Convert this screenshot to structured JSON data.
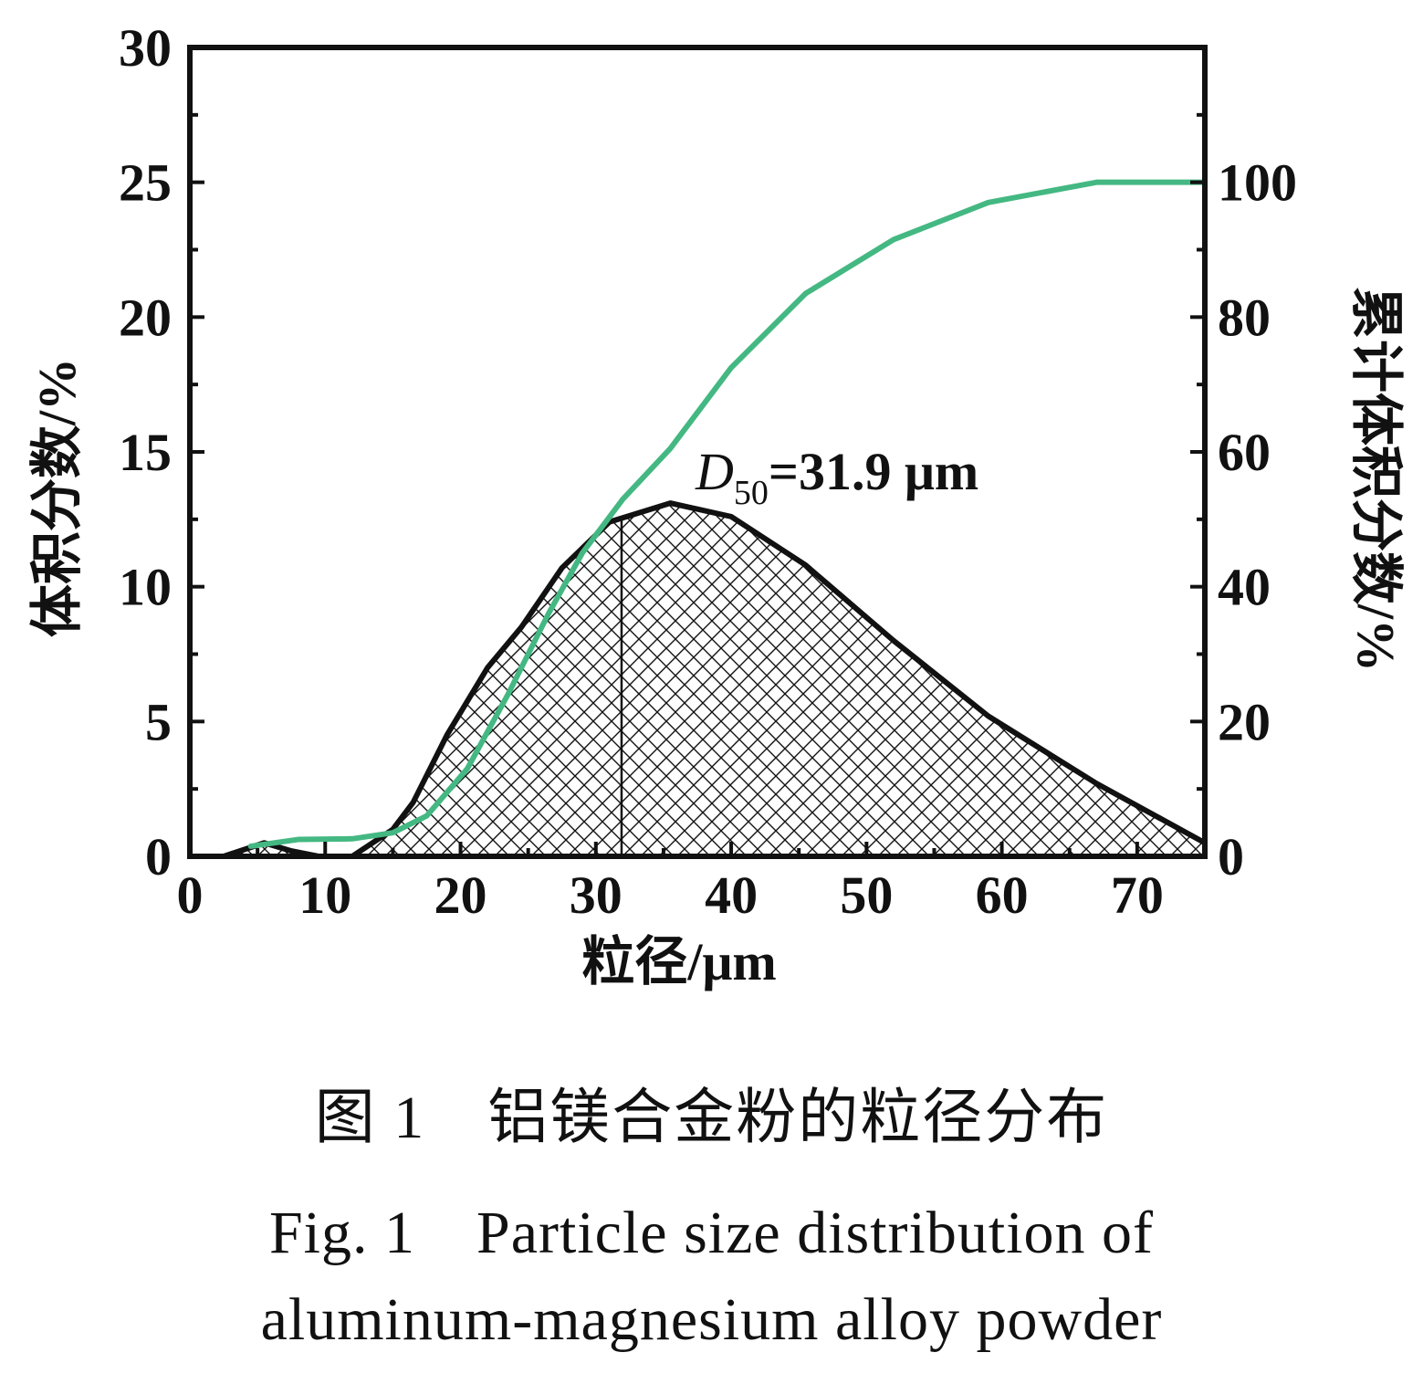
{
  "chart_data": {
    "type": "area",
    "xlabel": "粒径/μm",
    "ylabel_left": "体积分数/%",
    "ylabel_right": "累计体积分数/%",
    "xlim": [
      0,
      75
    ],
    "ylim_left": [
      0,
      30
    ],
    "ylim_right": [
      0,
      120
    ],
    "x_ticks": [
      "0",
      "10",
      "20",
      "30",
      "40",
      "50",
      "60",
      "70"
    ],
    "y_left_ticks": [
      "0",
      "5",
      "10",
      "15",
      "20",
      "25",
      "30"
    ],
    "y_right_ticks": [
      "0",
      "20",
      "40",
      "60",
      "80",
      "100"
    ],
    "annotation": {
      "symbol": "D",
      "subscript": "50",
      "text": "=31.9 μm",
      "x": 31.9
    },
    "series": [
      {
        "axis": "left",
        "style": "black line with cross-hatched fill",
        "x": [
          2.5,
          5.5,
          7.5,
          9.5,
          12,
          13.5,
          15,
          16.5,
          19,
          22,
          24.5,
          27.5,
          31,
          35.5,
          40,
          45.5,
          52,
          59,
          67,
          75
        ],
        "y": [
          0,
          0.5,
          0.2,
          0,
          0,
          0.5,
          1.0,
          2.0,
          4.5,
          7.0,
          8.5,
          10.7,
          12.4,
          13.1,
          12.6,
          10.8,
          8.0,
          5.2,
          2.7,
          0.5
        ]
      },
      {
        "axis": "right",
        "style": "green line",
        "x": [
          4.5,
          8,
          12,
          15,
          17.5,
          20.5,
          23.5,
          26.5,
          29,
          32,
          35.5,
          40,
          45.5,
          52,
          59,
          67,
          75
        ],
        "y": [
          1.5,
          2.5,
          2.6,
          3.5,
          6,
          13,
          24,
          36,
          45,
          53,
          60.5,
          72.5,
          83.5,
          91.5,
          97,
          100,
          100
        ]
      }
    ]
  },
  "caption": {
    "zh": "图 1　铝镁合金粉的粒径分布",
    "en_line1": "Fig. 1　Particle size distribution of",
    "en_line2": "aluminum-magnesium alloy powder"
  },
  "colors": {
    "cumulative_line": "#44b882",
    "distribution_line": "#111111",
    "hatch": "#111111"
  }
}
